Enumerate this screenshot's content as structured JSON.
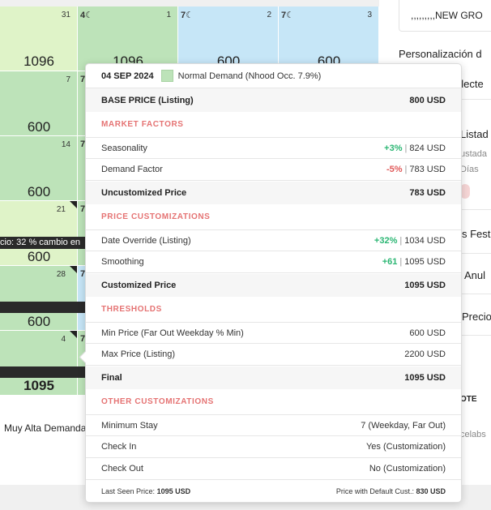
{
  "calendar": {
    "rows": [
      {
        "cells": [
          {
            "day": "31",
            "moon": "",
            "price": "1096",
            "color": "light"
          },
          {
            "day": "1",
            "moon": "4☾",
            "price": "1096",
            "color": "green"
          },
          {
            "day": "2",
            "moon": "7☾",
            "price": "600",
            "color": "blue"
          },
          {
            "day": "3",
            "moon": "7☾",
            "price": "600",
            "color": "blue"
          }
        ]
      },
      {
        "cells": [
          {
            "day": "7",
            "moon": "",
            "price": "600",
            "color": "green"
          },
          {
            "day": "",
            "moon": "7",
            "price": "",
            "color": "green"
          }
        ]
      },
      {
        "cells": [
          {
            "day": "14",
            "moon": "",
            "price": "600",
            "color": "green"
          },
          {
            "day": "",
            "moon": "7",
            "price": "",
            "color": "green"
          }
        ]
      },
      {
        "cells": [
          {
            "day": "21",
            "moon": "",
            "price": "600",
            "color": "light"
          },
          {
            "day": "",
            "moon": "7",
            "price": "",
            "color": "green"
          }
        ]
      },
      {
        "cells": [
          {
            "day": "28",
            "moon": "",
            "price": "600",
            "color": "green"
          },
          {
            "day": "",
            "moon": "7",
            "price": "",
            "color": "blue"
          }
        ]
      },
      {
        "cells": [
          {
            "day": "4",
            "moon": "",
            "price": "1095",
            "color": "green"
          },
          {
            "day": "",
            "moon": "7",
            "price": "",
            "color": "green"
          }
        ]
      }
    ],
    "banner_text": "cio: 32 % cambio en",
    "legend_text": "Muy Alta Demanda"
  },
  "right_panel": {
    "group_name": ",,,,,,,,,NEW GRO",
    "personalization": "Personalización d",
    "select_text": "electe",
    "listing": "Listad",
    "adjusted": "ustada",
    "days": "Días",
    "festivals": "s Fest",
    "cancel": "Anul",
    "price": "Precio",
    "note": "OTE",
    "celabs": "celabs"
  },
  "tooltip": {
    "date": "04 SEP 2024",
    "demand": "Normal Demand (Nhood Occ. 7.9%)",
    "base_price_label": "BASE PRICE (Listing)",
    "base_price_value": "800 USD",
    "market_factors": "MARKET FACTORS",
    "seasonality_label": "Seasonality",
    "seasonality_pct": "+3%",
    "seasonality_value": "824 USD",
    "demand_label": "Demand Factor",
    "demand_pct": "-5%",
    "demand_value": "783 USD",
    "uncustomized_label": "Uncustomized Price",
    "uncustomized_value": "783 USD",
    "price_customizations": "PRICE CUSTOMIZATIONS",
    "date_override_label": "Date Override (Listing)",
    "date_override_pct": "+32%",
    "date_override_value": "1034 USD",
    "smoothing_label": "Smoothing",
    "smoothing_delta": "+61",
    "smoothing_value": "1095 USD",
    "customized_label": "Customized Price",
    "customized_value": "1095 USD",
    "thresholds": "THRESHOLDS",
    "min_price_label": "Min Price (Far Out Weekday % Min)",
    "min_price_value": "600 USD",
    "max_price_label": "Max Price (Listing)",
    "max_price_value": "2200 USD",
    "final_label": "Final",
    "final_value": "1095 USD",
    "other_customizations": "OTHER CUSTOMIZATIONS",
    "min_stay_label": "Minimum Stay",
    "min_stay_value": "7 (Weekday, Far Out)",
    "check_in_label": "Check In",
    "check_in_value": "Yes (Customization)",
    "check_out_label": "Check Out",
    "check_out_value": "No (Customization)",
    "last_seen_label": "Last Seen Price:",
    "last_seen_value": "1095 USD",
    "default_cust_label": "Price with Default Cust.:",
    "default_cust_value": "830 USD"
  },
  "colors": {
    "light_green": "#dff3c8",
    "green": "#bde3b9",
    "blue": "#c6e6f7",
    "positive": "#2bb673",
    "negative": "#e05a5a",
    "section": "#e57373"
  }
}
